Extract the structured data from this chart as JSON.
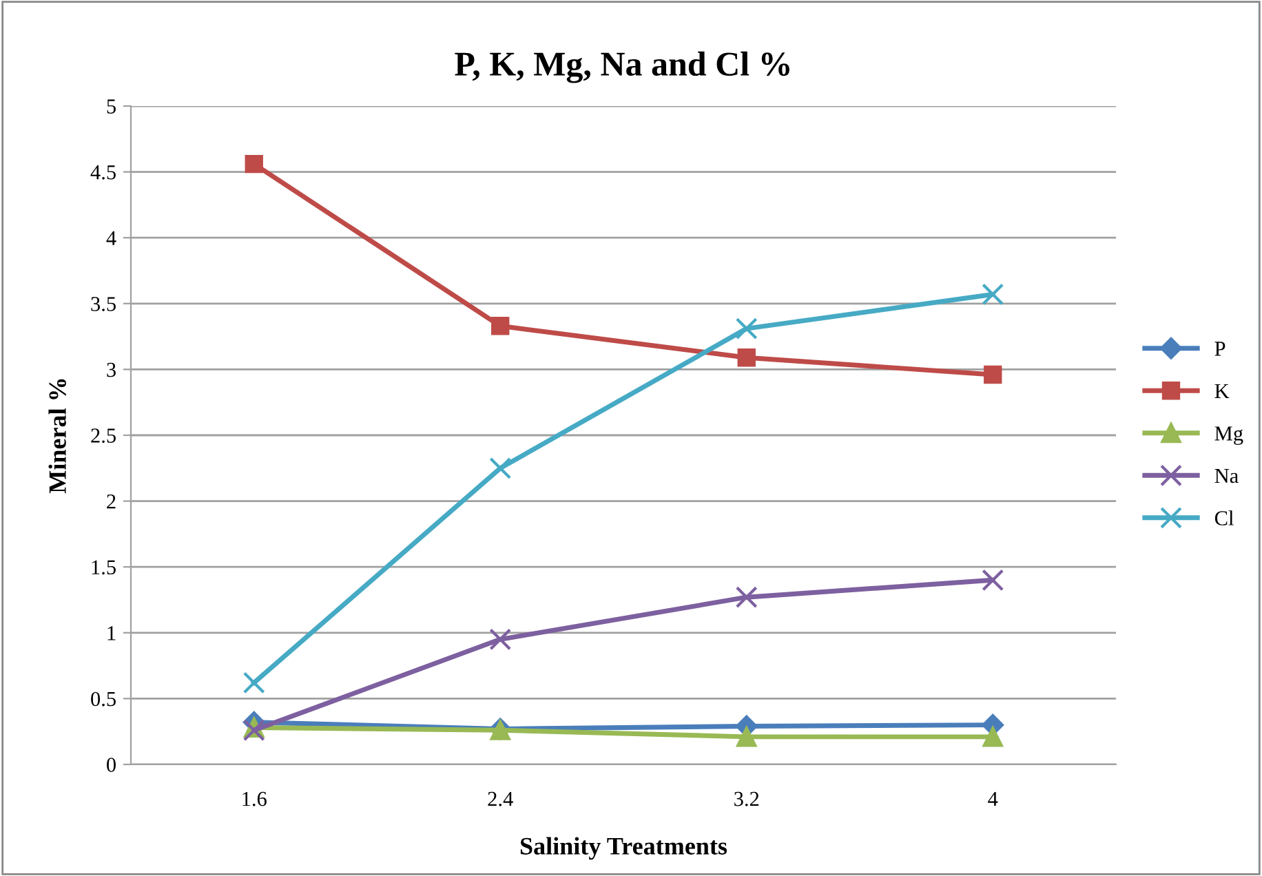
{
  "chart_data": {
    "type": "line",
    "title": "P, K, Mg, Na and Cl %",
    "xlabel": "Salinity Treatments",
    "ylabel": "Mineral %",
    "categories": [
      "1.6",
      "2.4",
      "3.2",
      "4"
    ],
    "series": [
      {
        "name": "P",
        "color": "#4a7ebb",
        "marker": "diamond",
        "values": [
          0.32,
          0.27,
          0.29,
          0.3
        ]
      },
      {
        "name": "K",
        "color": "#be4b48",
        "marker": "square",
        "values": [
          4.56,
          3.33,
          3.09,
          2.96
        ]
      },
      {
        "name": "Mg",
        "color": "#98b954",
        "marker": "triangle",
        "values": [
          0.28,
          0.26,
          0.21,
          0.21
        ]
      },
      {
        "name": "Na",
        "color": "#7d60a0",
        "marker": "cross",
        "values": [
          0.26,
          0.95,
          1.27,
          1.4
        ]
      },
      {
        "name": "Cl",
        "color": "#46aac5",
        "marker": "cross",
        "values": [
          0.62,
          2.25,
          3.31,
          3.57
        ]
      }
    ],
    "ylim": [
      0,
      5
    ],
    "yticks": [
      0,
      0.5,
      1,
      1.5,
      2,
      2.5,
      3,
      3.5,
      4,
      4.5,
      5
    ],
    "grid": "y",
    "legend": "right",
    "line_style": "solid"
  }
}
